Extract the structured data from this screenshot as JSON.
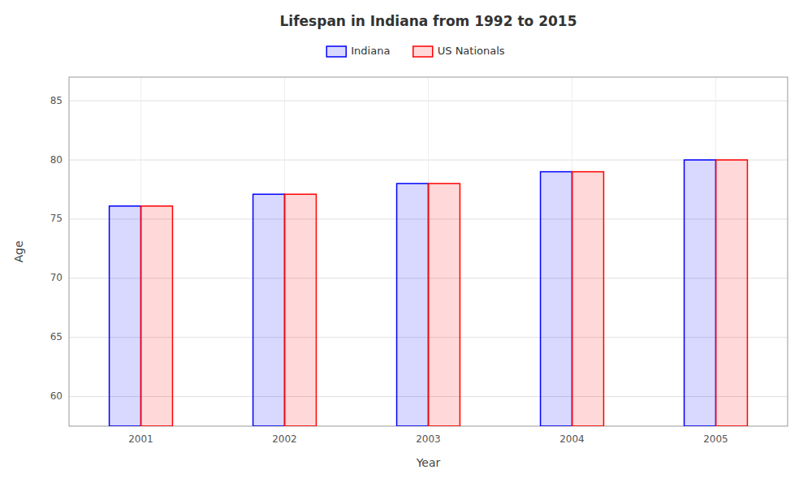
{
  "chart_data": {
    "type": "bar",
    "title": "Lifespan in Indiana from 1992 to 2015",
    "x_label": "Year",
    "y_label": "Age",
    "categories": [
      "2001",
      "2002",
      "2003",
      "2004",
      "2005"
    ],
    "series": [
      {
        "name": "Indiana",
        "color": "#0000ff",
        "values": [
          76.1,
          77.1,
          78.0,
          79.0,
          80.0
        ]
      },
      {
        "name": "US Nationals",
        "color": "#ff0000",
        "values": [
          76.1,
          77.1,
          78.0,
          79.0,
          80.0
        ]
      }
    ],
    "ylim": [
      57.5,
      87
    ],
    "yticks": [
      60,
      65,
      70,
      75,
      80,
      85
    ],
    "grid": true,
    "legend": "top"
  }
}
